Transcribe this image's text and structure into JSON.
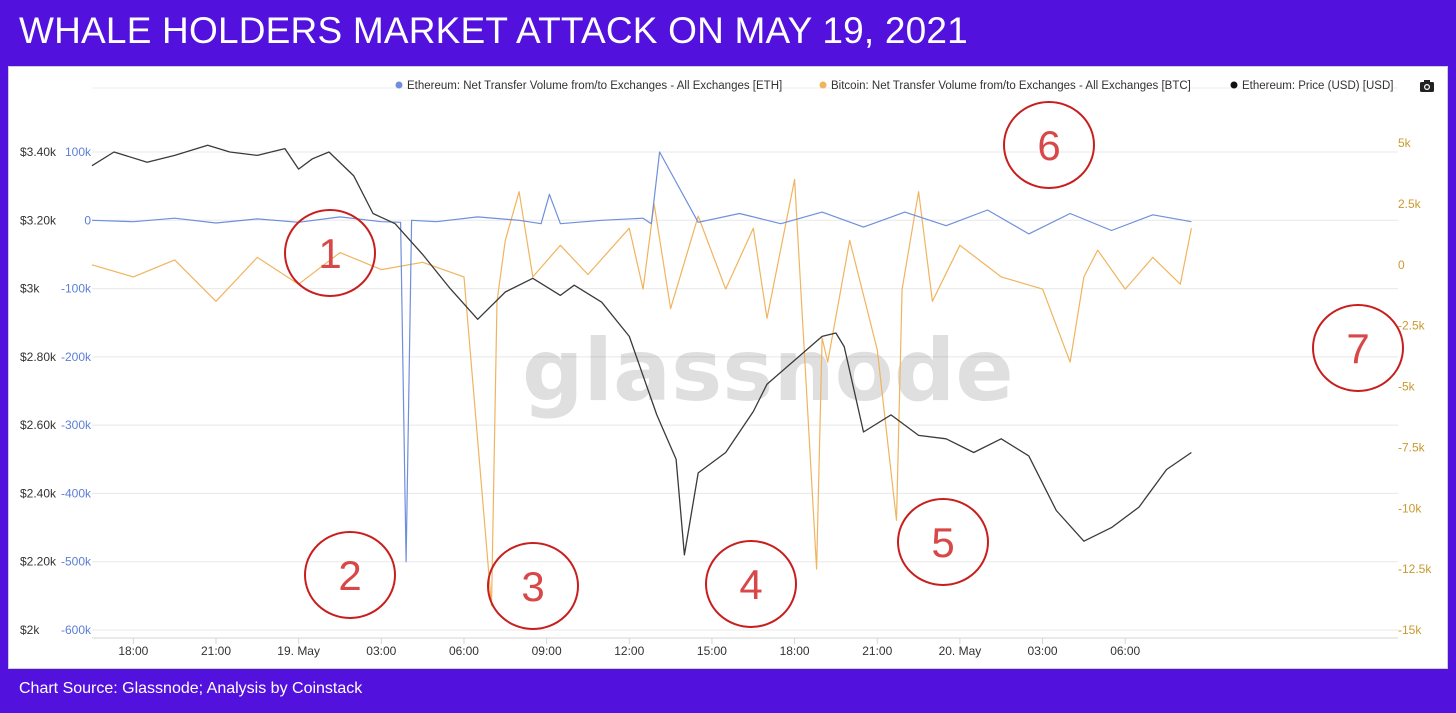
{
  "title": "WHALE HOLDERS MARKET ATTACK ON MAY 19, 2021",
  "footer": "Chart Source: Glassnode; Analysis by Coinstack",
  "watermark": "glassnode",
  "icons": {
    "camera": "camera-icon"
  },
  "chart_data": {
    "type": "line",
    "x_tick_labels": [
      "18:00",
      "21:00",
      "19. May",
      "03:00",
      "06:00",
      "09:00",
      "12:00",
      "15:00",
      "18:00",
      "21:00",
      "20. May",
      "03:00",
      "06:00"
    ],
    "x_range": [
      "2021-05-18 16:30",
      "2021-05-20 07:40"
    ],
    "y_axes": {
      "price": {
        "ticks": [
          "$2k",
          "$2.20k",
          "$2.40k",
          "$2.60k",
          "$2.80k",
          "$3k",
          "$3.20k",
          "$3.40k"
        ],
        "range": [
          2000,
          3400
        ],
        "color": "#333333"
      },
      "eth": {
        "ticks": [
          "-600k",
          "-500k",
          "-400k",
          "-300k",
          "-200k",
          "-100k",
          "0",
          "100k"
        ],
        "range": [
          -600000,
          100000
        ],
        "color": "#5b7fd6"
      },
      "btc": {
        "ticks": [
          "5k",
          "2.5k",
          "0",
          "-2.5k",
          "-5k",
          "-7.5k",
          "-10k",
          "-12.5k",
          "-15k"
        ],
        "range": [
          -15000,
          5000
        ],
        "color": "#c99a2e"
      }
    },
    "grid": true,
    "legend_position": "top-right",
    "series": [
      {
        "name": "Ethereum: Net Transfer Volume from/to Exchanges - All Exchanges [ETH]",
        "color": "#6f8fdc",
        "axis": "eth",
        "x": [
          0,
          1.5,
          3,
          4.5,
          6,
          7.5,
          9,
          10.5,
          11.2,
          11.4,
          11.6,
          12.5,
          14,
          15.5,
          16.3,
          16.6,
          17,
          18.5,
          20,
          20.3,
          20.6,
          22,
          23.5,
          25,
          26.5,
          28,
          29.5,
          31,
          32.5,
          34,
          35.5,
          37,
          38.5,
          39.9
        ],
        "values": [
          0,
          -2000,
          3000,
          -4000,
          2000,
          -3000,
          5000,
          -2000,
          -3000,
          -500000,
          0,
          -2000,
          5000,
          0,
          -5000,
          38000,
          -5000,
          0,
          3000,
          -5000,
          100000,
          -3000,
          10000,
          -5000,
          12000,
          -10000,
          12000,
          -8000,
          15000,
          -20000,
          10000,
          -15000,
          8000,
          -2000
        ]
      },
      {
        "name": "Bitcoin: Net Transfer Volume from/to Exchanges - All Exchanges [BTC]",
        "color": "#f0b45e",
        "axis": "btc",
        "x": [
          0,
          1.5,
          3,
          4.5,
          6,
          7.5,
          9,
          10.5,
          12,
          13.5,
          14.5,
          14.7,
          15,
          15.5,
          16,
          17,
          18,
          19.5,
          20,
          20.4,
          21,
          22,
          23,
          24,
          24.5,
          25.5,
          26.3,
          26.5,
          26.7,
          27.5,
          28.5,
          29.2,
          29.4,
          30,
          30.5,
          31.5,
          33,
          34.5,
          35.5,
          36,
          36.5,
          37.5,
          38.5,
          39.5,
          39.9
        ],
        "values": [
          0,
          -500,
          200,
          -1500,
          300,
          -800,
          500,
          -200,
          100,
          -500,
          -14000,
          -1500,
          1000,
          3000,
          -500,
          800,
          -400,
          1500,
          -1000,
          2500,
          -1800,
          2000,
          -1000,
          1500,
          -2200,
          3500,
          -12500,
          -3000,
          -4000,
          1000,
          -3500,
          -10500,
          -1000,
          3000,
          -1500,
          800,
          -500,
          -1000,
          -4000,
          -500,
          600,
          -1000,
          300,
          -800,
          1500
        ]
      },
      {
        "name": "Ethereum: Price (USD) [USD]",
        "color": "#3a3a3a",
        "axis": "price",
        "x": [
          0,
          0.8,
          2,
          3,
          4.2,
          5,
          6,
          7,
          7.5,
          8,
          8.6,
          9.5,
          10.2,
          11,
          12,
          13,
          14,
          15,
          16,
          17,
          17.5,
          18.5,
          19.5,
          20.5,
          21.2,
          21.5,
          22,
          23,
          24,
          24.5,
          25.5,
          26.5,
          27,
          27.3,
          28,
          29,
          30,
          31,
          32,
          33,
          34,
          35,
          36,
          37,
          38,
          39,
          39.9
        ],
        "values": [
          3360,
          3400,
          3370,
          3390,
          3420,
          3400,
          3390,
          3410,
          3350,
          3380,
          3400,
          3330,
          3220,
          3190,
          3100,
          3000,
          2910,
          2990,
          3030,
          2980,
          3010,
          2960,
          2860,
          2630,
          2500,
          2220,
          2460,
          2520,
          2640,
          2720,
          2790,
          2860,
          2870,
          2830,
          2580,
          2630,
          2570,
          2560,
          2520,
          2560,
          2510,
          2350,
          2260,
          2300,
          2360,
          2470,
          2520
        ]
      }
    ]
  },
  "annotations": [
    {
      "label": "1"
    },
    {
      "label": "2"
    },
    {
      "label": "3"
    },
    {
      "label": "4"
    },
    {
      "label": "5"
    },
    {
      "label": "6"
    },
    {
      "label": "7"
    }
  ]
}
